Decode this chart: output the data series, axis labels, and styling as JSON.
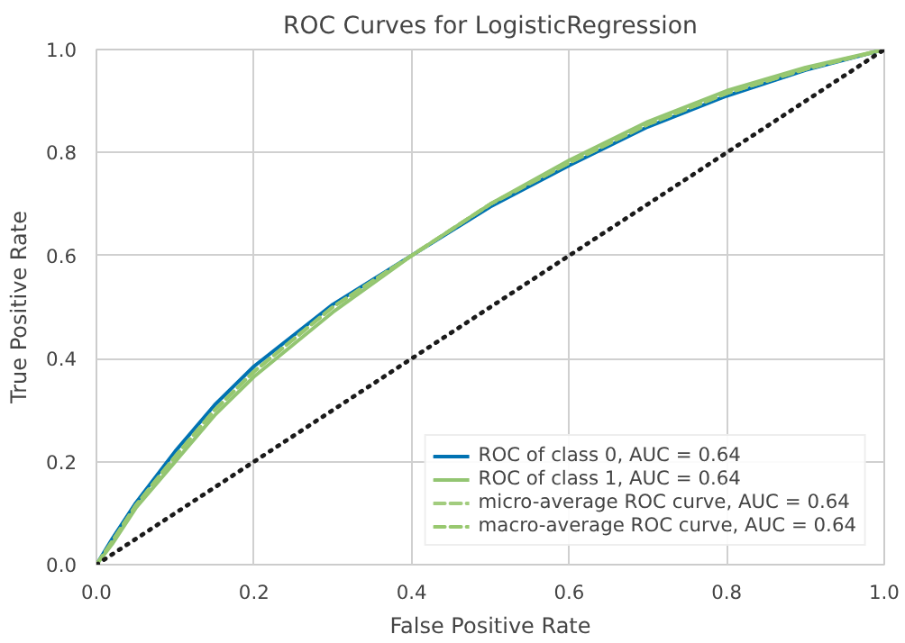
{
  "chart_data": {
    "type": "line",
    "title": "ROC Curves for LogisticRegression",
    "xlabel": "False Positive Rate",
    "ylabel": "True Positive Rate",
    "xlim": [
      0,
      1
    ],
    "ylim": [
      0,
      1
    ],
    "xticks": [
      {
        "value": 0,
        "label": "0.0"
      },
      0.2,
      0.4,
      0.6,
      0.8,
      {
        "value": 1,
        "label": "1.0"
      }
    ],
    "yticks": [
      {
        "value": 0,
        "label": "0.0"
      },
      0.2,
      0.4,
      0.6,
      0.8,
      {
        "value": 1,
        "label": "1.0"
      }
    ],
    "x": [
      0,
      0.02,
      0.05,
      0.1,
      0.15,
      0.2,
      0.3,
      0.4,
      0.5,
      0.6,
      0.7,
      0.8,
      0.9,
      1.0
    ],
    "series": [
      {
        "name": "ROC of class 0, AUC = 0.64",
        "color": "#0072b2",
        "line_style": "solid",
        "values": [
          0,
          0.05,
          0.12,
          0.22,
          0.31,
          0.385,
          0.505,
          0.6,
          0.695,
          0.775,
          0.85,
          0.91,
          0.96,
          1.0
        ]
      },
      {
        "name": "ROC of class 1, AUC = 0.64",
        "color": "#93c572",
        "line_style": "solid",
        "values": [
          0,
          0.04,
          0.11,
          0.2,
          0.29,
          0.365,
          0.49,
          0.6,
          0.7,
          0.785,
          0.86,
          0.92,
          0.965,
          1.0
        ]
      },
      {
        "name": "micro-average ROC curve, AUC = 0.64",
        "color": "#a2cc7e",
        "line_style": "dashed",
        "values": [
          0,
          0.045,
          0.115,
          0.21,
          0.3,
          0.375,
          0.5,
          0.6,
          0.7,
          0.78,
          0.855,
          0.915,
          0.962,
          1.0
        ]
      },
      {
        "name": "macro-average ROC curve, AUC = 0.64",
        "color": "#98c86f",
        "line_style": "dashed",
        "values": [
          0,
          0.045,
          0.115,
          0.21,
          0.3,
          0.375,
          0.5,
          0.6,
          0.7,
          0.78,
          0.855,
          0.915,
          0.962,
          1.0
        ]
      },
      {
        "color": "#1a1a1a",
        "line_style": "dotted",
        "x": [
          0,
          1
        ],
        "values": [
          0,
          1
        ]
      }
    ],
    "grid": true,
    "legend": "bottom right",
    "marker": "none"
  }
}
